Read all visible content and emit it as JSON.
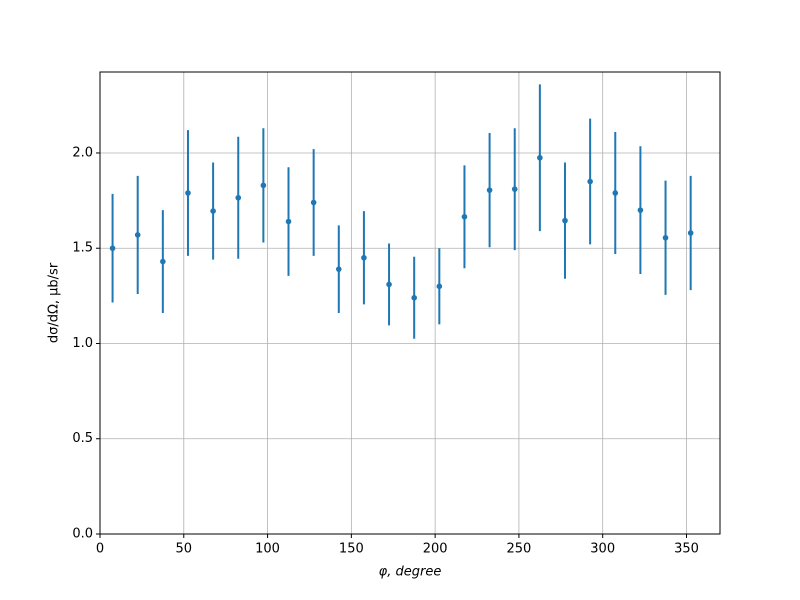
{
  "chart_data": {
    "type": "errorbar",
    "x_label": "φ, degree",
    "y_label": "dσ/dΩ, μb/sr",
    "x": [
      7.5,
      22.5,
      37.5,
      52.5,
      67.5,
      82.5,
      97.5,
      112.5,
      127.5,
      142.5,
      157.5,
      172.5,
      187.5,
      202.5,
      217.5,
      232.5,
      247.5,
      262.5,
      277.5,
      292.5,
      307.5,
      322.5,
      337.5,
      352.5
    ],
    "values": [
      1.5,
      1.57,
      1.43,
      1.79,
      1.695,
      1.765,
      1.83,
      1.64,
      1.74,
      1.39,
      1.45,
      1.31,
      1.24,
      1.3,
      1.665,
      1.805,
      1.81,
      1.975,
      1.645,
      1.85,
      1.79,
      1.7,
      1.555,
      1.58
    ],
    "errors": [
      0.285,
      0.31,
      0.27,
      0.33,
      0.255,
      0.32,
      0.3,
      0.285,
      0.28,
      0.23,
      0.245,
      0.215,
      0.215,
      0.2,
      0.27,
      0.3,
      0.32,
      0.385,
      0.305,
      0.33,
      0.32,
      0.335,
      0.3,
      0.3
    ],
    "color": "#1f77b4",
    "xlim": [
      0,
      370
    ],
    "ylim": [
      0,
      2.425
    ],
    "xticks": [
      0,
      50,
      100,
      150,
      200,
      250,
      300,
      350
    ],
    "yticks": [
      {
        "value": 0,
        "label": "0.0"
      },
      0.5,
      {
        "value": 1,
        "label": "1.0"
      },
      1.5,
      {
        "value": 2,
        "label": "2.0"
      }
    ],
    "grid": true
  }
}
